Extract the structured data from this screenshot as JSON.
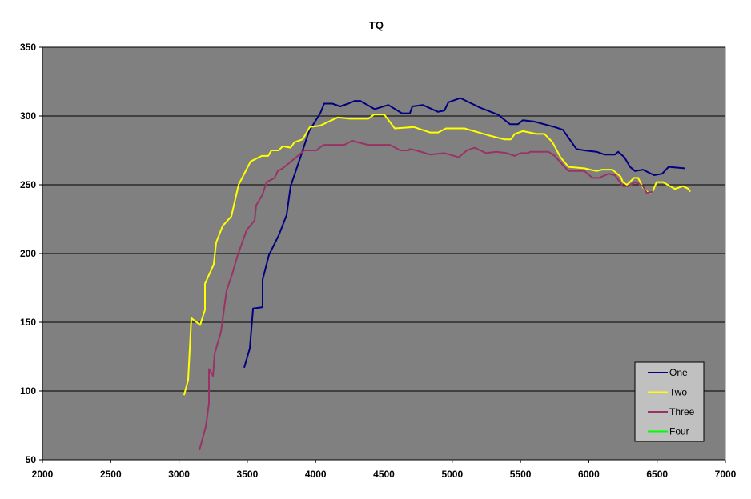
{
  "chart_data": {
    "type": "line",
    "title": "TQ",
    "xlabel": "",
    "ylabel": "",
    "xlim": [
      2000,
      7000
    ],
    "ylim": [
      50,
      350
    ],
    "xticks": [
      2000,
      2500,
      3000,
      3500,
      4000,
      4500,
      5000,
      5500,
      6000,
      6500,
      7000
    ],
    "yticks": [
      50,
      100,
      150,
      200,
      250,
      300,
      350
    ],
    "grid": "horizontal major",
    "legend_position": "bottom-right",
    "plot_background": "#808080",
    "series": [
      {
        "name": "One",
        "color": "#000080",
        "points": [
          [
            3477,
            117
          ],
          [
            3518,
            131
          ],
          [
            3542,
            160
          ],
          [
            3612,
            161
          ],
          [
            3612,
            181
          ],
          [
            3659,
            199
          ],
          [
            3729,
            213
          ],
          [
            3788,
            228
          ],
          [
            3817,
            249
          ],
          [
            3882,
            268
          ],
          [
            3952,
            289
          ],
          [
            4034,
            302
          ],
          [
            4063,
            309
          ],
          [
            4122,
            309
          ],
          [
            4180,
            307
          ],
          [
            4239,
            309
          ],
          [
            4286,
            311
          ],
          [
            4327,
            311
          ],
          [
            4432,
            305
          ],
          [
            4532,
            308
          ],
          [
            4632,
            302
          ],
          [
            4690,
            302
          ],
          [
            4708,
            307
          ],
          [
            4784,
            308
          ],
          [
            4896,
            303
          ],
          [
            4943,
            304
          ],
          [
            4972,
            310
          ],
          [
            5060,
            313
          ],
          [
            5206,
            306
          ],
          [
            5283,
            303
          ],
          [
            5335,
            301
          ],
          [
            5423,
            294
          ],
          [
            5482,
            294
          ],
          [
            5517,
            297
          ],
          [
            5599,
            296
          ],
          [
            5751,
            292
          ],
          [
            5810,
            290
          ],
          [
            5910,
            276
          ],
          [
            5968,
            275
          ],
          [
            6056,
            274
          ],
          [
            6115,
            272
          ],
          [
            6191,
            272
          ],
          [
            6215,
            274
          ],
          [
            6261,
            270
          ],
          [
            6302,
            263
          ],
          [
            6338,
            260
          ],
          [
            6396,
            261
          ],
          [
            6478,
            257
          ],
          [
            6537,
            258
          ],
          [
            6584,
            263
          ],
          [
            6701,
            262
          ]
        ]
      },
      {
        "name": "Two",
        "color": "#FFFF00",
        "points": [
          [
            3037,
            97
          ],
          [
            3067,
            108
          ],
          [
            3090,
            153
          ],
          [
            3155,
            148
          ],
          [
            3190,
            159
          ],
          [
            3190,
            178
          ],
          [
            3254,
            192
          ],
          [
            3272,
            208
          ],
          [
            3319,
            220
          ],
          [
            3383,
            227
          ],
          [
            3436,
            250
          ],
          [
            3524,
            267
          ],
          [
            3606,
            271
          ],
          [
            3653,
            271
          ],
          [
            3677,
            275
          ],
          [
            3729,
            275
          ],
          [
            3759,
            278
          ],
          [
            3817,
            277
          ],
          [
            3846,
            281
          ],
          [
            3905,
            283
          ],
          [
            3958,
            292
          ],
          [
            4034,
            293
          ],
          [
            4163,
            299
          ],
          [
            4251,
            298
          ],
          [
            4385,
            298
          ],
          [
            4427,
            301
          ],
          [
            4503,
            301
          ],
          [
            4579,
            291
          ],
          [
            4720,
            292
          ],
          [
            4837,
            288
          ],
          [
            4896,
            288
          ],
          [
            4954,
            291
          ],
          [
            5089,
            291
          ],
          [
            5265,
            286
          ],
          [
            5382,
            283
          ],
          [
            5429,
            283
          ],
          [
            5458,
            287
          ],
          [
            5517,
            289
          ],
          [
            5617,
            287
          ],
          [
            5675,
            287
          ],
          [
            5734,
            281
          ],
          [
            5793,
            270
          ],
          [
            5851,
            263
          ],
          [
            5968,
            262
          ],
          [
            6056,
            260
          ],
          [
            6097,
            261
          ],
          [
            6173,
            261
          ],
          [
            6232,
            256
          ],
          [
            6250,
            252
          ],
          [
            6279,
            250
          ],
          [
            6332,
            255
          ],
          [
            6361,
            255
          ],
          [
            6396,
            248
          ],
          [
            6437,
            244
          ],
          [
            6467,
            245
          ],
          [
            6496,
            252
          ],
          [
            6543,
            252
          ],
          [
            6631,
            247
          ],
          [
            6689,
            249
          ],
          [
            6730,
            247
          ],
          [
            6742,
            245
          ]
        ]
      },
      {
        "name": "Three",
        "color": "#993366",
        "points": [
          [
            3149,
            57
          ],
          [
            3196,
            74
          ],
          [
            3219,
            91
          ],
          [
            3219,
            116
          ],
          [
            3249,
            111
          ],
          [
            3260,
            127
          ],
          [
            3307,
            143
          ],
          [
            3348,
            173
          ],
          [
            3389,
            185
          ],
          [
            3430,
            199
          ],
          [
            3495,
            217
          ],
          [
            3553,
            224
          ],
          [
            3565,
            235
          ],
          [
            3612,
            243
          ],
          [
            3641,
            252
          ],
          [
            3700,
            255
          ],
          [
            3723,
            260
          ],
          [
            3759,
            262
          ],
          [
            3846,
            269
          ],
          [
            3917,
            275
          ],
          [
            4005,
            275
          ],
          [
            4057,
            279
          ],
          [
            4210,
            279
          ],
          [
            4268,
            282
          ],
          [
            4385,
            279
          ],
          [
            4544,
            279
          ],
          [
            4620,
            275
          ],
          [
            4679,
            275
          ],
          [
            4690,
            276
          ],
          [
            4737,
            275
          ],
          [
            4837,
            272
          ],
          [
            4943,
            273
          ],
          [
            5048,
            270
          ],
          [
            5107,
            275
          ],
          [
            5165,
            277
          ],
          [
            5247,
            273
          ],
          [
            5323,
            274
          ],
          [
            5399,
            273
          ],
          [
            5458,
            271
          ],
          [
            5500,
            273
          ],
          [
            5558,
            273
          ],
          [
            5570,
            274
          ],
          [
            5705,
            274
          ],
          [
            5751,
            271
          ],
          [
            5851,
            260
          ],
          [
            5898,
            260
          ],
          [
            5968,
            260
          ],
          [
            6027,
            255
          ],
          [
            6074,
            255
          ],
          [
            6144,
            258
          ],
          [
            6191,
            257
          ],
          [
            6250,
            249
          ],
          [
            6291,
            249
          ],
          [
            6338,
            252
          ],
          [
            6396,
            249
          ],
          [
            6425,
            244
          ],
          [
            6467,
            245
          ]
        ]
      },
      {
        "name": "Four",
        "color": "#00FF00",
        "points": []
      }
    ]
  }
}
